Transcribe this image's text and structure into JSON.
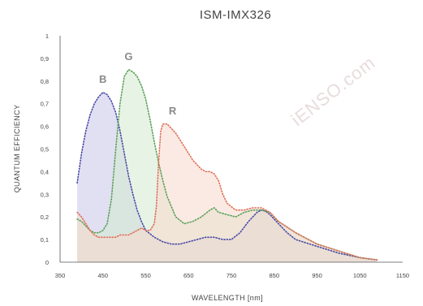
{
  "chart_data": {
    "type": "area",
    "title": "ISM-IMX326",
    "xlabel": "WAVELENGTH [nm]",
    "ylabel": "QUANTUM EFFICIENCY",
    "xlim": [
      350,
      1150
    ],
    "ylim": [
      0,
      1
    ],
    "xticks": [
      "350",
      "450",
      "550",
      "650",
      "750",
      "850",
      "950",
      "1050",
      "1150"
    ],
    "yticks": [
      "0",
      "0,1",
      "0,2",
      "0,3",
      "0,4",
      "0,5",
      "0,6",
      "0,7",
      "0,8",
      "0,9",
      "1"
    ],
    "grid": false,
    "watermark": "iENSO.com",
    "series": [
      {
        "name": "B",
        "color": "#4a4aa6",
        "fill": "#c9c5e8",
        "x": [
          390,
          400,
          410,
          420,
          430,
          440,
          450,
          460,
          470,
          480,
          490,
          500,
          510,
          520,
          530,
          540,
          550,
          570,
          590,
          610,
          630,
          650,
          670,
          690,
          710,
          730,
          750,
          770,
          790,
          810,
          820,
          830,
          840,
          860,
          880,
          900,
          950,
          1000,
          1050,
          1090
        ],
        "y": [
          0.35,
          0.48,
          0.58,
          0.65,
          0.7,
          0.73,
          0.75,
          0.74,
          0.71,
          0.66,
          0.58,
          0.48,
          0.38,
          0.3,
          0.23,
          0.18,
          0.14,
          0.11,
          0.09,
          0.08,
          0.08,
          0.09,
          0.1,
          0.11,
          0.11,
          0.1,
          0.1,
          0.13,
          0.18,
          0.22,
          0.23,
          0.225,
          0.21,
          0.17,
          0.13,
          0.1,
          0.07,
          0.04,
          0.02,
          0.01
        ]
      },
      {
        "name": "G",
        "color": "#5aa05a",
        "fill": "#d4ead0",
        "x": [
          390,
          400,
          410,
          420,
          430,
          440,
          450,
          460,
          470,
          480,
          490,
          500,
          510,
          520,
          530,
          540,
          550,
          560,
          570,
          580,
          590,
          600,
          620,
          640,
          660,
          680,
          700,
          710,
          720,
          740,
          760,
          780,
          800,
          820,
          840,
          860,
          900,
          950,
          1000,
          1050,
          1090
        ],
        "y": [
          0.19,
          0.18,
          0.16,
          0.14,
          0.13,
          0.13,
          0.14,
          0.17,
          0.28,
          0.5,
          0.7,
          0.82,
          0.85,
          0.84,
          0.82,
          0.78,
          0.72,
          0.63,
          0.53,
          0.44,
          0.36,
          0.29,
          0.2,
          0.17,
          0.18,
          0.2,
          0.23,
          0.24,
          0.22,
          0.21,
          0.2,
          0.22,
          0.23,
          0.23,
          0.22,
          0.18,
          0.13,
          0.08,
          0.05,
          0.02,
          0.01
        ]
      },
      {
        "name": "R",
        "color": "#e07058",
        "fill": "#f7d8cc",
        "x": [
          390,
          400,
          410,
          420,
          430,
          440,
          450,
          460,
          470,
          480,
          490,
          500,
          510,
          520,
          530,
          540,
          550,
          560,
          570,
          575,
          580,
          585,
          590,
          600,
          610,
          620,
          630,
          640,
          650,
          660,
          670,
          680,
          690,
          700,
          710,
          720,
          730,
          740,
          760,
          780,
          800,
          820,
          840,
          860,
          900,
          950,
          1000,
          1050,
          1090
        ],
        "y": [
          0.22,
          0.2,
          0.17,
          0.14,
          0.12,
          0.11,
          0.11,
          0.11,
          0.11,
          0.11,
          0.12,
          0.12,
          0.12,
          0.13,
          0.14,
          0.15,
          0.14,
          0.14,
          0.17,
          0.25,
          0.44,
          0.58,
          0.61,
          0.61,
          0.59,
          0.57,
          0.54,
          0.51,
          0.48,
          0.45,
          0.43,
          0.41,
          0.4,
          0.4,
          0.39,
          0.36,
          0.3,
          0.26,
          0.23,
          0.23,
          0.24,
          0.24,
          0.22,
          0.18,
          0.13,
          0.08,
          0.05,
          0.02,
          0.01
        ]
      }
    ]
  }
}
